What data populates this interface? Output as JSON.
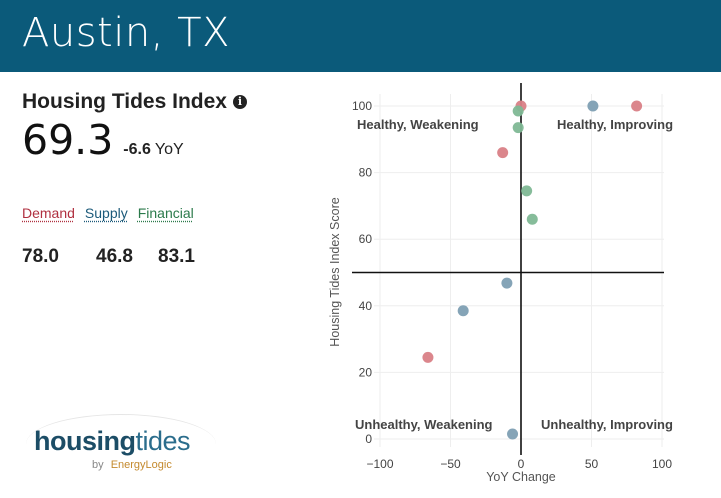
{
  "header": {
    "title": "Austin, TX"
  },
  "index": {
    "title": "Housing Tides Index",
    "info_icon": "info-circle-icon",
    "score": "69.3",
    "yoy_value": "-6.6",
    "yoy_unit": "YoY"
  },
  "components": {
    "demand_label": "Demand",
    "supply_label": "Supply",
    "financial_label": "Financial",
    "demand_value": "78.0",
    "supply_value": "46.8",
    "financial_value": "83.1"
  },
  "logo": {
    "housing": "housing",
    "tides": "tides",
    "by": "by",
    "brand": "EnergyLogic"
  },
  "colors": {
    "header_bg": "#0b5a7a",
    "demand": "#d98086",
    "supply": "#7e9fb3",
    "financial": "#7fb895",
    "demand_text": "#b03040",
    "supply_text": "#1c5a7a",
    "financial_text": "#2b7a4b"
  },
  "chart_data": {
    "type": "scatter",
    "xlabel": "YoY Change",
    "ylabel": "Housing Tides Index Score",
    "xlim": [
      -100,
      100
    ],
    "ylim": [
      0,
      100
    ],
    "x_ticks": [
      -100,
      -50,
      0,
      50,
      100
    ],
    "y_ticks": [
      0,
      20,
      40,
      60,
      80,
      100
    ],
    "x_tick_labels": [
      "−100",
      "−50",
      "0",
      "50",
      "100"
    ],
    "y_tick_labels": [
      "0",
      "20",
      "40",
      "60",
      "80",
      "100"
    ],
    "grid": true,
    "reference_lines": {
      "x": 0,
      "y": 50
    },
    "quadrant_labels": {
      "top_left": "Healthy, Weakening",
      "top_right": "Healthy, Improving",
      "bottom_left": "Unhealthy, Weakening",
      "bottom_right": "Unhealthy, Improving"
    },
    "series": [
      {
        "key": "demand",
        "color": "#d98086",
        "points": [
          [
            0,
            100
          ],
          [
            82,
            100
          ],
          [
            -13,
            86
          ],
          [
            -66,
            24.5
          ]
        ]
      },
      {
        "key": "supply",
        "color": "#7e9fb3",
        "points": [
          [
            51,
            100
          ],
          [
            -10,
            46.8
          ],
          [
            -41,
            38.5
          ],
          [
            -6,
            1.5
          ]
        ]
      },
      {
        "key": "financial",
        "color": "#7fb895",
        "points": [
          [
            -2,
            98.5
          ],
          [
            -2,
            93.5
          ],
          [
            4,
            74.5
          ],
          [
            8,
            66
          ]
        ]
      }
    ]
  }
}
